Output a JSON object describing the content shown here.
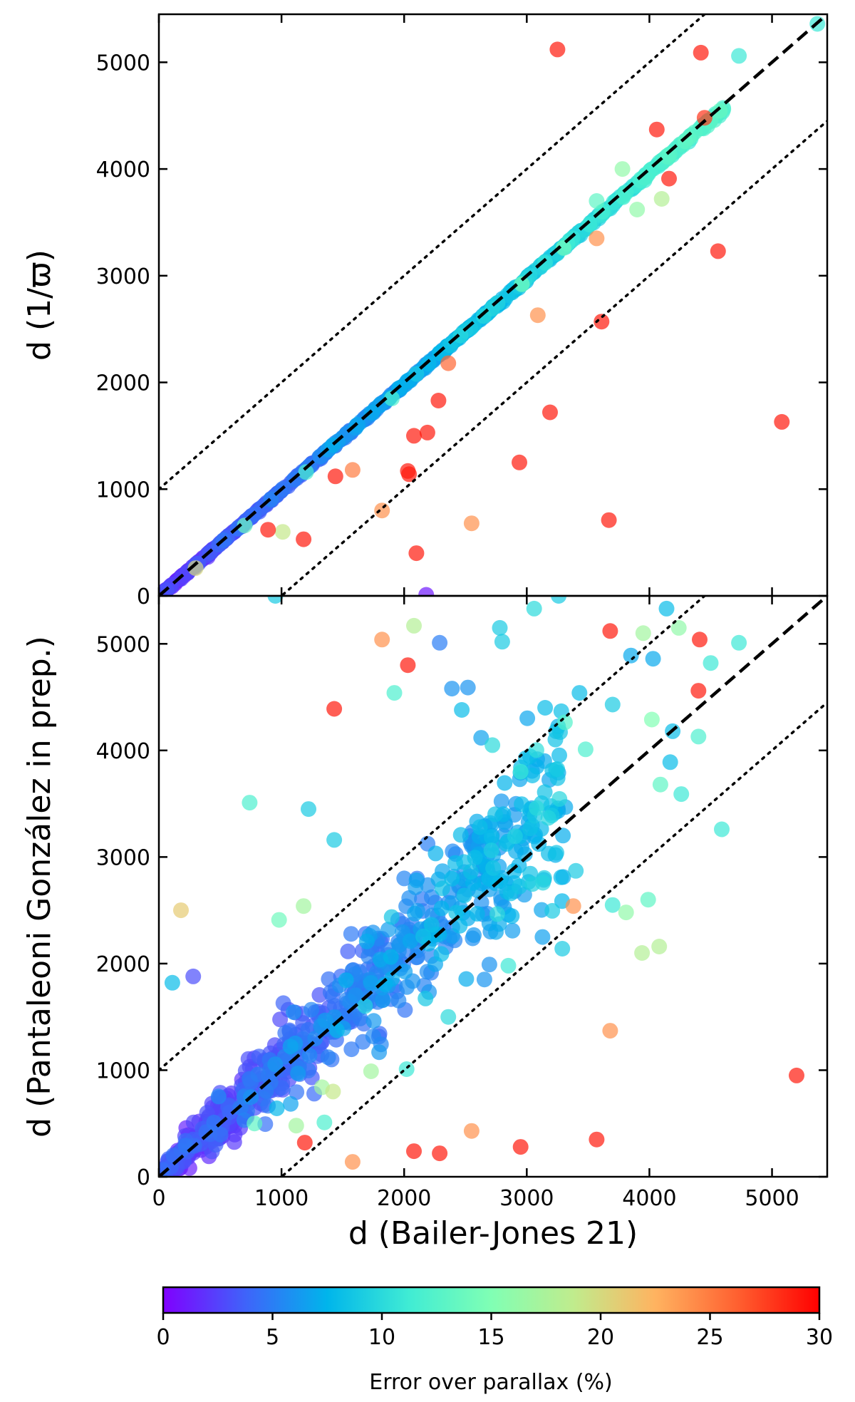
{
  "chart_data": [
    {
      "type": "scatter",
      "panel": "top",
      "xlabel": "",
      "ylabel": "d (1/ϖ)",
      "xlim": [
        0,
        5450
      ],
      "ylim": [
        0,
        5450
      ],
      "x_ticks": [
        0,
        1000,
        2000,
        3000,
        4000,
        5000
      ],
      "y_ticks": [
        "0",
        "1000",
        "2000",
        "3000",
        "4000",
        "5000"
      ],
      "ticks_inward": true,
      "reference_lines": [
        {
          "style": "dashed",
          "slope": 1,
          "intercept": 0
        },
        {
          "style": "dotted",
          "slope": 1,
          "intercept": 1000
        },
        {
          "style": "dotted",
          "slope": 1,
          "intercept": -1000
        }
      ],
      "color_encodes": "Error over parallax (%)",
      "outliers": [
        {
          "x": 3250,
          "y": 5120,
          "c": 29
        },
        {
          "x": 4420,
          "y": 5090,
          "c": 29
        },
        {
          "x": 4060,
          "y": 4370,
          "c": 29
        },
        {
          "x": 4450,
          "y": 4480,
          "c": 28
        },
        {
          "x": 4160,
          "y": 3910,
          "c": 29
        },
        {
          "x": 4560,
          "y": 3230,
          "c": 29
        },
        {
          "x": 3570,
          "y": 3350,
          "c": 24
        },
        {
          "x": 3090,
          "y": 2630,
          "c": 24
        },
        {
          "x": 3610,
          "y": 2570,
          "c": 29
        },
        {
          "x": 2360,
          "y": 2180,
          "c": 26
        },
        {
          "x": 2280,
          "y": 1830,
          "c": 29
        },
        {
          "x": 3190,
          "y": 1720,
          "c": 29
        },
        {
          "x": 5080,
          "y": 1630,
          "c": 29
        },
        {
          "x": 2080,
          "y": 1500,
          "c": 29
        },
        {
          "x": 2190,
          "y": 1530,
          "c": 29
        },
        {
          "x": 2940,
          "y": 1250,
          "c": 29
        },
        {
          "x": 1440,
          "y": 1120,
          "c": 29
        },
        {
          "x": 1580,
          "y": 1180,
          "c": 25
        },
        {
          "x": 2030,
          "y": 1170,
          "c": 29
        },
        {
          "x": 2040,
          "y": 1140,
          "c": 29
        },
        {
          "x": 3670,
          "y": 710,
          "c": 29
        },
        {
          "x": 1820,
          "y": 800,
          "c": 24
        },
        {
          "x": 2550,
          "y": 680,
          "c": 24
        },
        {
          "x": 890,
          "y": 620,
          "c": 29
        },
        {
          "x": 1180,
          "y": 530,
          "c": 29
        },
        {
          "x": 1010,
          "y": 600,
          "c": 19
        },
        {
          "x": 2100,
          "y": 400,
          "c": 29
        },
        {
          "x": 2180,
          "y": 10,
          "c": 1
        },
        {
          "x": 3570,
          "y": 3700,
          "c": 13
        },
        {
          "x": 3900,
          "y": 3620,
          "c": 16
        },
        {
          "x": 4100,
          "y": 3720,
          "c": 18
        },
        {
          "x": 3780,
          "y": 4000,
          "c": 16
        },
        {
          "x": 4730,
          "y": 5060,
          "c": 11
        },
        {
          "x": 5370,
          "y": 5360,
          "c": 11
        },
        {
          "x": 4320,
          "y": 4290,
          "c": 13
        },
        {
          "x": 2100,
          "y": 2080,
          "c": 9
        },
        {
          "x": 1900,
          "y": 1850,
          "c": 12
        },
        {
          "x": 2960,
          "y": 2920,
          "c": 14
        },
        {
          "x": 3300,
          "y": 3260,
          "c": 14
        },
        {
          "x": 1200,
          "y": 1160,
          "c": 12
        },
        {
          "x": 700,
          "y": 660,
          "c": 14
        },
        {
          "x": 300,
          "y": 260,
          "c": 20
        }
      ]
    },
    {
      "type": "scatter",
      "panel": "bottom",
      "xlabel": "d (Bailer-Jones 21)",
      "ylabel": "d (Pantaleoni González in prep.)",
      "xlim": [
        0,
        5450
      ],
      "ylim": [
        0,
        5450
      ],
      "x_ticks": [
        "0",
        "1000",
        "2000",
        "3000",
        "4000",
        "5000"
      ],
      "y_ticks": [
        "0",
        "1000",
        "2000",
        "3000",
        "4000",
        "5000"
      ],
      "ticks_inward": true,
      "reference_lines": [
        {
          "style": "dashed",
          "slope": 1,
          "intercept": 0
        },
        {
          "style": "dotted",
          "slope": 1,
          "intercept": 1000
        },
        {
          "style": "dotted",
          "slope": 1,
          "intercept": -1000
        }
      ],
      "color_encodes": "Error over parallax (%)",
      "outliers": [
        {
          "x": 950,
          "y": 5450,
          "c": 9
        },
        {
          "x": 3260,
          "y": 5450,
          "c": 9
        },
        {
          "x": 1820,
          "y": 5040,
          "c": 24
        },
        {
          "x": 2080,
          "y": 5170,
          "c": 18
        },
        {
          "x": 2030,
          "y": 4800,
          "c": 29
        },
        {
          "x": 2290,
          "y": 5010,
          "c": 5
        },
        {
          "x": 2780,
          "y": 5150,
          "c": 9
        },
        {
          "x": 2800,
          "y": 5020,
          "c": 9
        },
        {
          "x": 3060,
          "y": 5330,
          "c": 10
        },
        {
          "x": 3680,
          "y": 5120,
          "c": 29
        },
        {
          "x": 3950,
          "y": 5100,
          "c": 17
        },
        {
          "x": 4140,
          "y": 5330,
          "c": 8
        },
        {
          "x": 4240,
          "y": 5150,
          "c": 16
        },
        {
          "x": 4410,
          "y": 5040,
          "c": 29
        },
        {
          "x": 4730,
          "y": 5010,
          "c": 11
        },
        {
          "x": 4500,
          "y": 4820,
          "c": 11
        },
        {
          "x": 3850,
          "y": 4890,
          "c": 7
        },
        {
          "x": 4030,
          "y": 4860,
          "c": 7
        },
        {
          "x": 1430,
          "y": 4390,
          "c": 29
        },
        {
          "x": 1920,
          "y": 4540,
          "c": 12
        },
        {
          "x": 2390,
          "y": 4580,
          "c": 6
        },
        {
          "x": 2520,
          "y": 4590,
          "c": 6
        },
        {
          "x": 2470,
          "y": 4380,
          "c": 8
        },
        {
          "x": 3150,
          "y": 4400,
          "c": 8
        },
        {
          "x": 3430,
          "y": 4540,
          "c": 8
        },
        {
          "x": 3700,
          "y": 4430,
          "c": 9
        },
        {
          "x": 4400,
          "y": 4560,
          "c": 29
        },
        {
          "x": 4020,
          "y": 4290,
          "c": 15
        },
        {
          "x": 4400,
          "y": 4130,
          "c": 12
        },
        {
          "x": 4190,
          "y": 4180,
          "c": 8
        },
        {
          "x": 4090,
          "y": 3680,
          "c": 13
        },
        {
          "x": 4170,
          "y": 3890,
          "c": 8
        },
        {
          "x": 4260,
          "y": 3590,
          "c": 11
        },
        {
          "x": 4590,
          "y": 3260,
          "c": 11
        },
        {
          "x": 740,
          "y": 3510,
          "c": 12
        },
        {
          "x": 1220,
          "y": 3450,
          "c": 9
        },
        {
          "x": 1430,
          "y": 3160,
          "c": 9
        },
        {
          "x": 110,
          "y": 1820,
          "c": 8
        },
        {
          "x": 180,
          "y": 2500,
          "c": 21
        },
        {
          "x": 280,
          "y": 1880,
          "c": 3
        },
        {
          "x": 980,
          "y": 2410,
          "c": 14
        },
        {
          "x": 1180,
          "y": 2540,
          "c": 17
        },
        {
          "x": 3810,
          "y": 2480,
          "c": 16
        },
        {
          "x": 3940,
          "y": 2100,
          "c": 18
        },
        {
          "x": 4080,
          "y": 2160,
          "c": 18
        },
        {
          "x": 3990,
          "y": 2600,
          "c": 13
        },
        {
          "x": 3700,
          "y": 2550,
          "c": 11
        },
        {
          "x": 3380,
          "y": 2540,
          "c": 24
        },
        {
          "x": 3680,
          "y": 1370,
          "c": 24
        },
        {
          "x": 5200,
          "y": 950,
          "c": 29
        },
        {
          "x": 2020,
          "y": 1010,
          "c": 11
        },
        {
          "x": 1730,
          "y": 990,
          "c": 17
        },
        {
          "x": 1330,
          "y": 840,
          "c": 17
        },
        {
          "x": 1420,
          "y": 800,
          "c": 19
        },
        {
          "x": 1350,
          "y": 510,
          "c": 12
        },
        {
          "x": 1120,
          "y": 480,
          "c": 17
        },
        {
          "x": 780,
          "y": 500,
          "c": 13
        },
        {
          "x": 1190,
          "y": 320,
          "c": 29
        },
        {
          "x": 1580,
          "y": 140,
          "c": 24
        },
        {
          "x": 2080,
          "y": 240,
          "c": 29
        },
        {
          "x": 2290,
          "y": 220,
          "c": 29
        },
        {
          "x": 2550,
          "y": 430,
          "c": 24
        },
        {
          "x": 2950,
          "y": 280,
          "c": 29
        },
        {
          "x": 3570,
          "y": 350,
          "c": 29
        },
        {
          "x": 2360,
          "y": 1500,
          "c": 10
        },
        {
          "x": 2850,
          "y": 1980,
          "c": 11
        },
        {
          "x": 3290,
          "y": 2140,
          "c": 9
        },
        {
          "x": 3400,
          "y": 2870,
          "c": 9
        },
        {
          "x": 2950,
          "y": 3800,
          "c": 11
        },
        {
          "x": 2720,
          "y": 4050,
          "c": 10
        },
        {
          "x": 3480,
          "y": 4010,
          "c": 12
        },
        {
          "x": 3080,
          "y": 3460,
          "c": 10
        }
      ]
    }
  ],
  "colorbar": {
    "label": "Error over parallax (%)",
    "min": 0,
    "max": 30,
    "ticks": [
      "0",
      "5",
      "10",
      "15",
      "20",
      "25",
      "30"
    ],
    "colormap": "rainbow",
    "colormap_stops": [
      "#8000ff",
      "#3f63fa",
      "#00b5eb",
      "#40ecd4",
      "#80ffb4",
      "#c0ec8d",
      "#ffb360",
      "#ff6030",
      "#ff0000"
    ]
  },
  "marker": {
    "alpha": 0.7,
    "line_color": "#000000"
  }
}
